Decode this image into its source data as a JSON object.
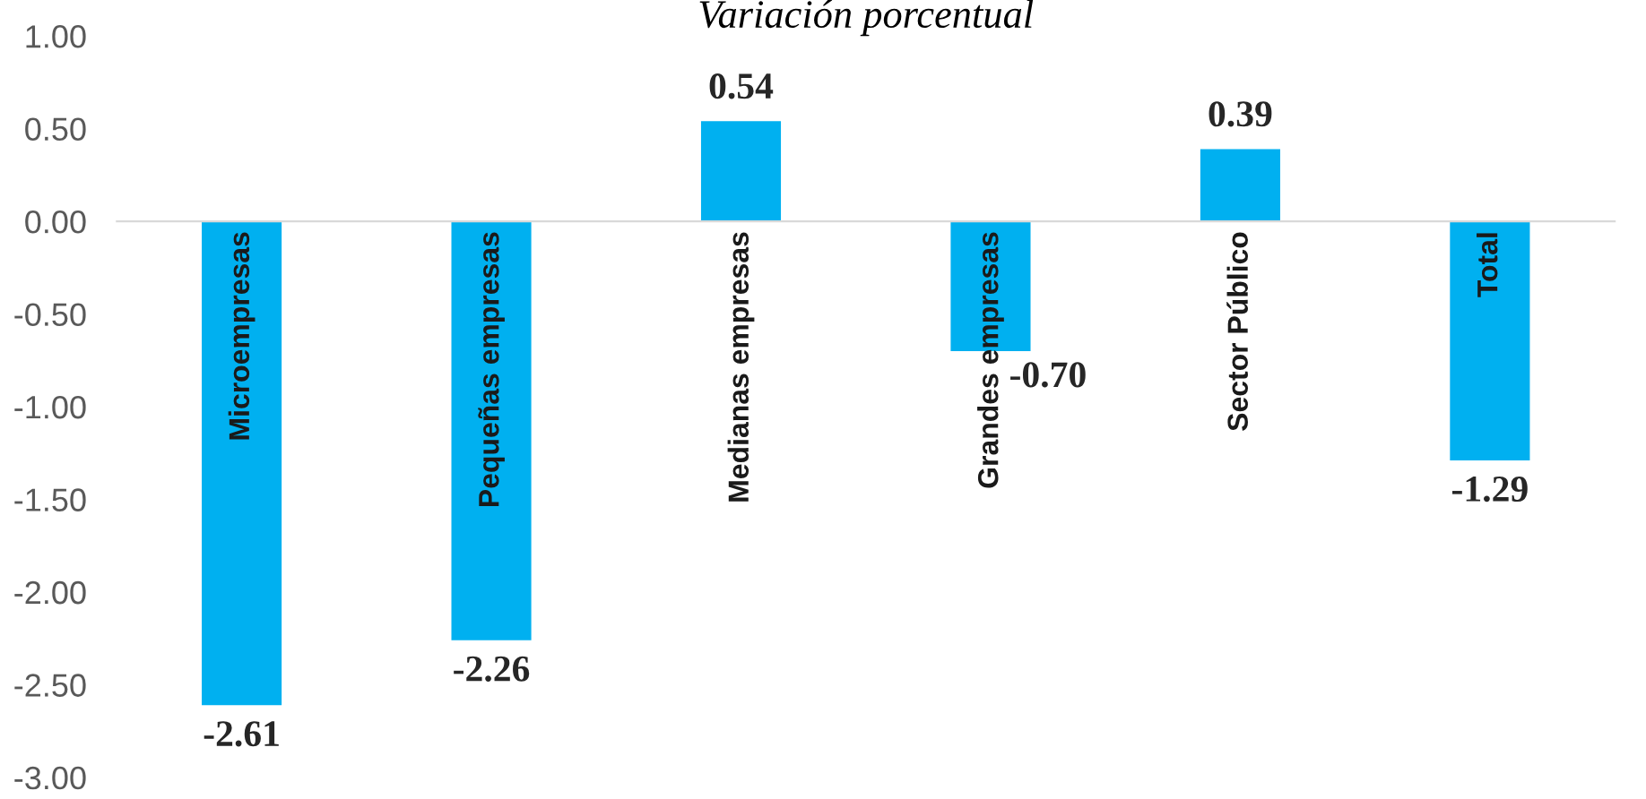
{
  "chart_data": {
    "type": "bar",
    "title": "Variación porcentual",
    "categories": [
      "Microempresas",
      "Pequeñas empresas",
      "Medianas empresas",
      "Grandes empresas",
      "Sector Público",
      "Total"
    ],
    "values": [
      -2.61,
      -2.26,
      0.54,
      -0.7,
      0.39,
      -1.29
    ],
    "color": "#00b0f0",
    "ylim": [
      -3.0,
      1.0
    ],
    "yticks": [
      {
        "value": -3.0,
        "label": "-3.00"
      },
      {
        "value": -2.5,
        "label": "-2.50"
      },
      {
        "value": -2.0,
        "label": "-2.00"
      },
      {
        "value": -1.5,
        "label": "-1.50"
      },
      {
        "value": -1.0,
        "label": "-1.00"
      },
      {
        "value": -0.5,
        "label": "-0.50"
      },
      {
        "value": 0.0,
        "label": "0.00"
      },
      {
        "value": 0.5,
        "label": "0.50"
      },
      {
        "value": 1.0,
        "label": "1.00"
      }
    ],
    "value_labels": [
      "-2.61",
      "-2.26",
      "0.54",
      "-0.70",
      "0.39",
      "-1.29"
    ],
    "grid": false,
    "legend": false
  }
}
